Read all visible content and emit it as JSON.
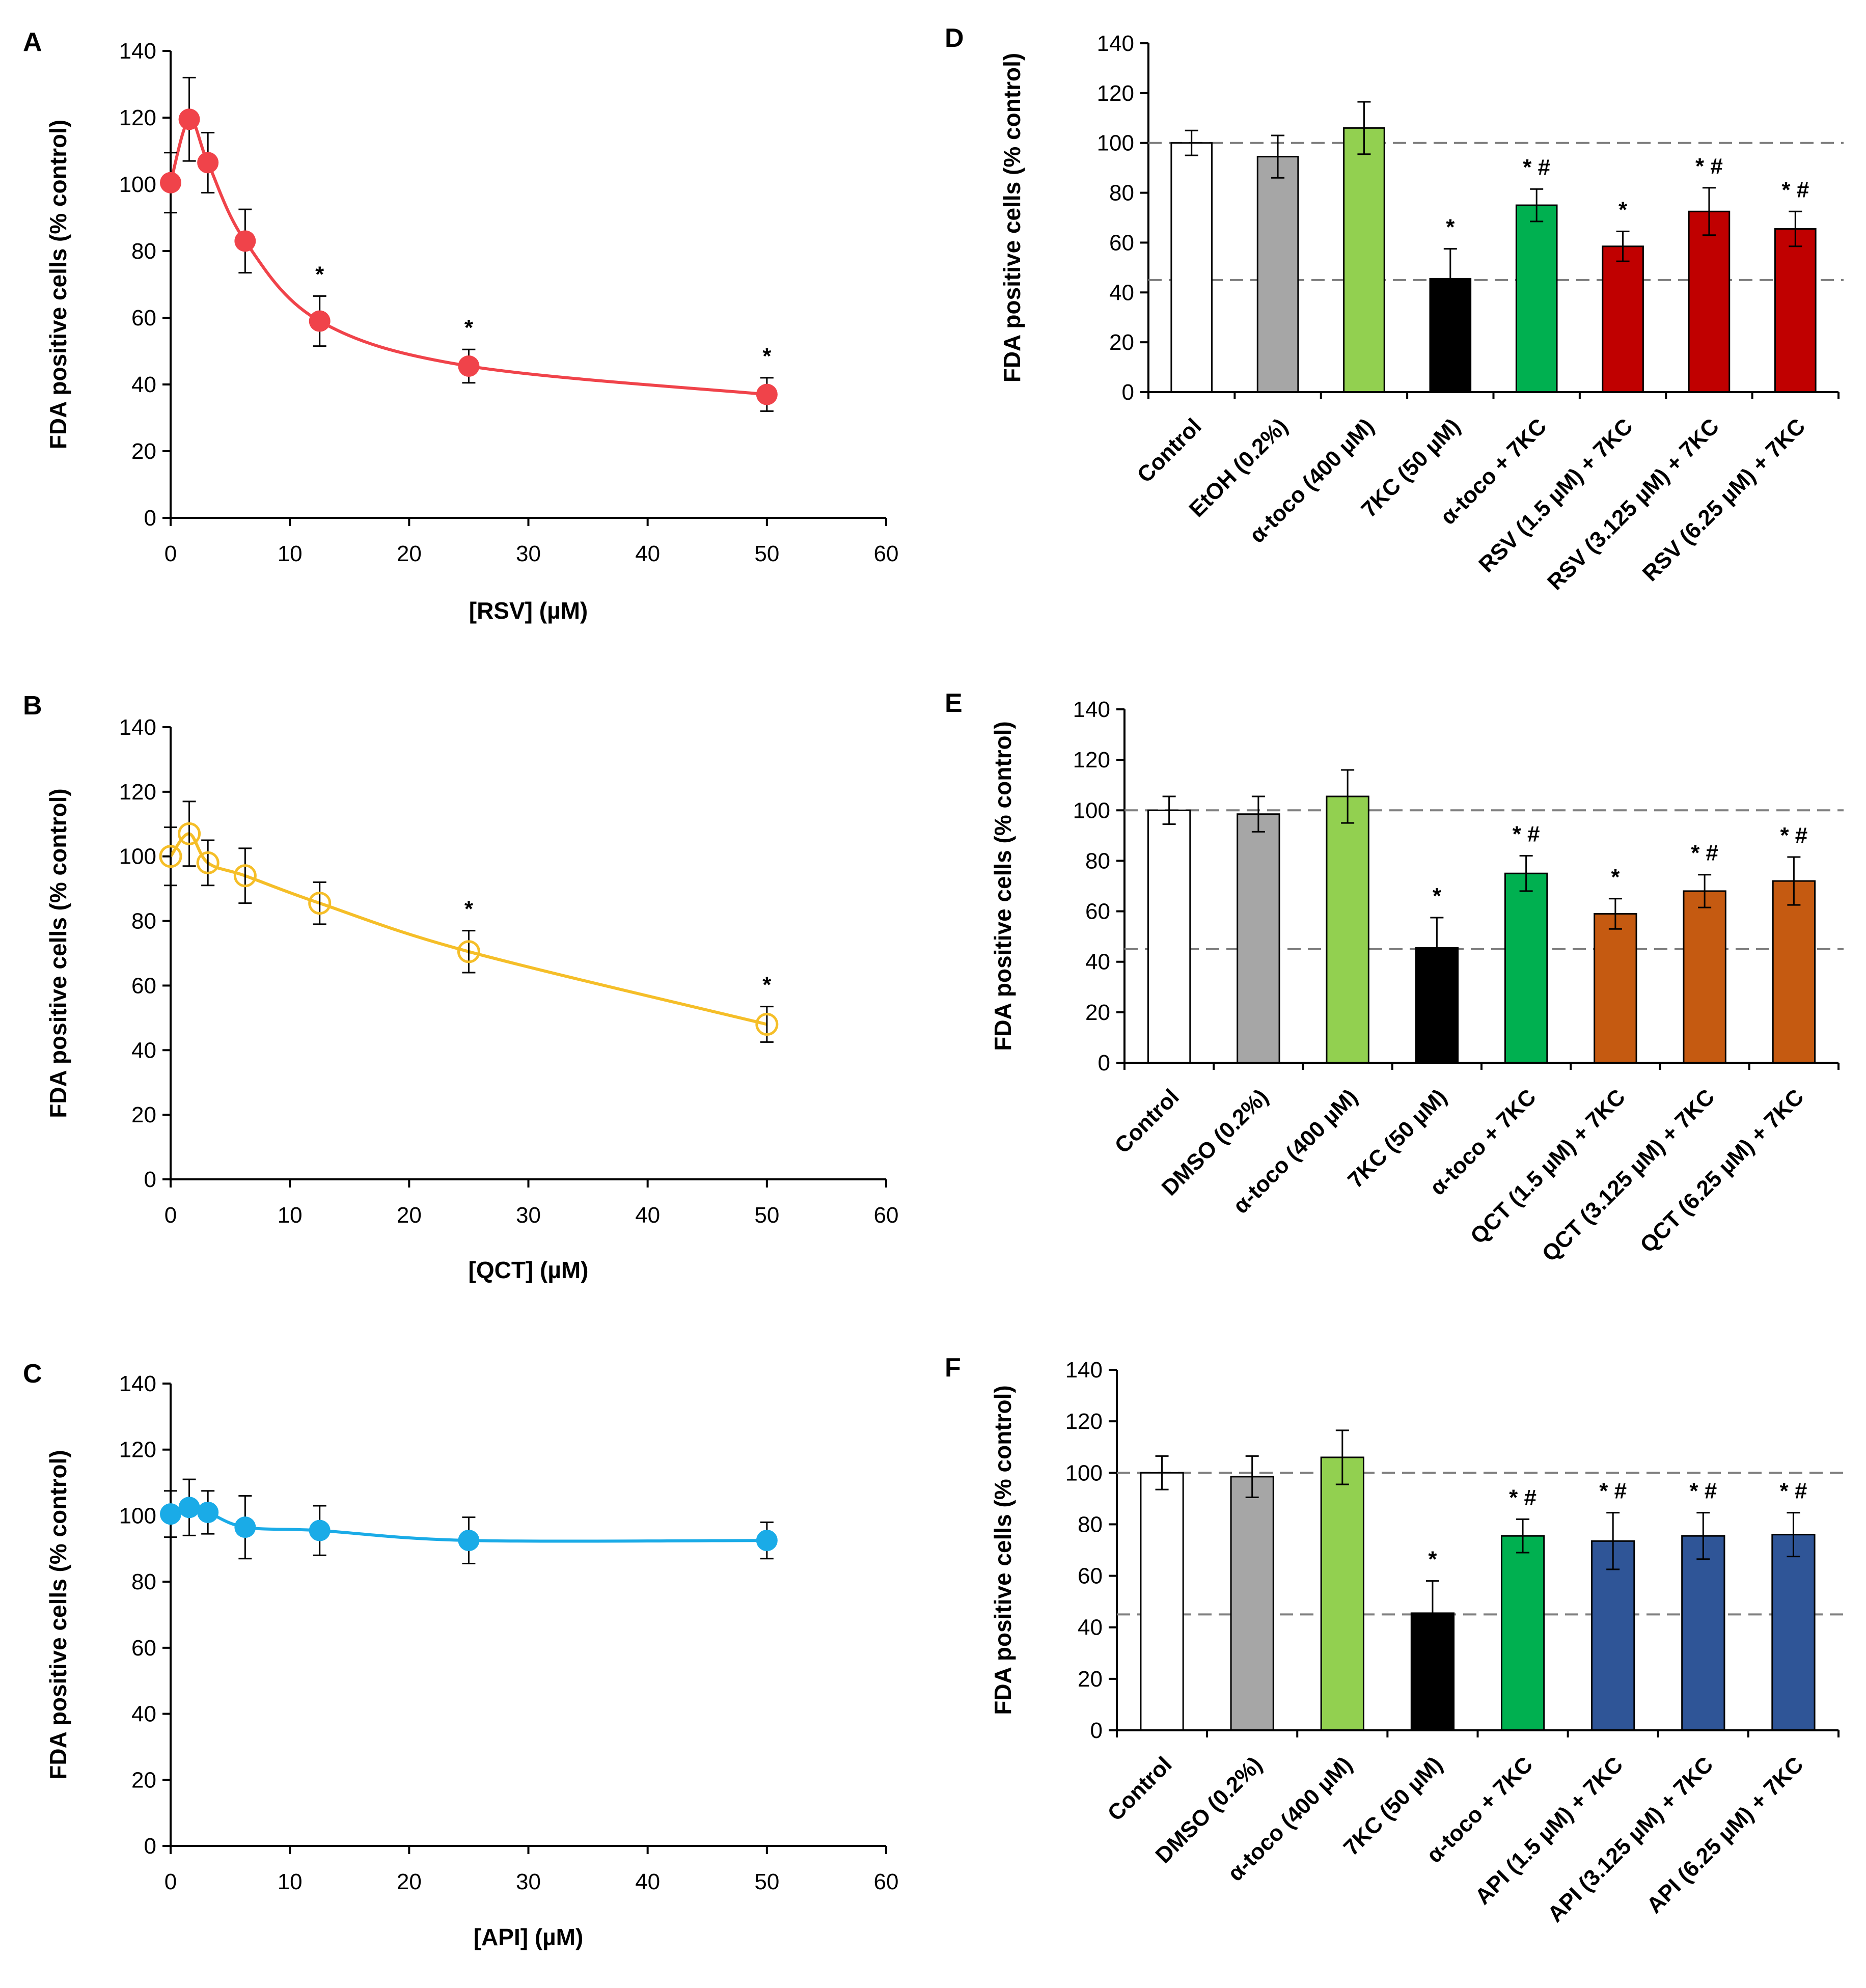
{
  "chart_data": [
    {
      "panel": "A",
      "type": "line",
      "xlabel": "[RSV] (µM)",
      "ylabel": "FDA positive  cells (% control)",
      "xlim": [
        0,
        60
      ],
      "ylim": [
        0,
        140
      ],
      "xticks": [
        0,
        10,
        20,
        30,
        40,
        50,
        60
      ],
      "yticks": [
        0,
        20,
        40,
        60,
        80,
        100,
        120,
        140
      ],
      "grid": false,
      "series": [
        {
          "name": "RSV",
          "color": "#f0434a",
          "marker": "filled",
          "x": [
            0,
            1.5625,
            3.125,
            6.25,
            12.5,
            25,
            50
          ],
          "values": [
            100.5,
            119.5,
            106.5,
            83,
            59,
            45.5,
            37
          ],
          "errors": [
            9,
            12.5,
            9,
            9.5,
            7.5,
            5,
            5
          ],
          "annotations": [
            "",
            "",
            "",
            "",
            "*",
            "*",
            "*"
          ]
        }
      ]
    },
    {
      "panel": "B",
      "type": "line",
      "xlabel": "[QCT] (µM)",
      "ylabel": "FDA positive  cells (% control)",
      "xlim": [
        0,
        60
      ],
      "ylim": [
        0,
        140
      ],
      "xticks": [
        0,
        10,
        20,
        30,
        40,
        50,
        60
      ],
      "yticks": [
        0,
        20,
        40,
        60,
        80,
        100,
        120,
        140
      ],
      "grid": false,
      "series": [
        {
          "name": "QCT",
          "color": "#f5be28",
          "marker": "open",
          "x": [
            0,
            1.5625,
            3.125,
            6.25,
            12.5,
            25,
            50
          ],
          "values": [
            100,
            107,
            98,
            94,
            85.5,
            70.5,
            48
          ],
          "errors": [
            9,
            10,
            7,
            8.5,
            6.5,
            6.5,
            5.5
          ],
          "annotations": [
            "",
            "",
            "",
            "",
            "",
            "*",
            "*"
          ]
        }
      ]
    },
    {
      "panel": "C",
      "type": "line",
      "xlabel": "[API] (µM)",
      "ylabel": "FDA positive  cells (% control)",
      "xlim": [
        0,
        60
      ],
      "ylim": [
        0,
        140
      ],
      "xticks": [
        0,
        10,
        20,
        30,
        40,
        50,
        60
      ],
      "yticks": [
        0,
        20,
        40,
        60,
        80,
        100,
        120,
        140
      ],
      "grid": false,
      "series": [
        {
          "name": "API",
          "color": "#1aabe7",
          "marker": "filled",
          "x": [
            0,
            1.5625,
            3.125,
            6.25,
            12.5,
            25,
            50
          ],
          "values": [
            100.5,
            102.5,
            101,
            96.5,
            95.5,
            92.5,
            92.5
          ],
          "errors": [
            7,
            8.5,
            6.5,
            9.5,
            7.5,
            7,
            5.5
          ],
          "annotations": [
            "",
            "",
            "",
            "",
            "",
            "",
            ""
          ]
        }
      ]
    },
    {
      "panel": "D",
      "type": "bar",
      "ylabel": "FDA positive cells (% control)",
      "ylim": [
        0,
        140
      ],
      "yticks": [
        0,
        20,
        40,
        60,
        80,
        100,
        120,
        140
      ],
      "reference_lines": [
        100,
        45
      ],
      "grid": false,
      "categories": [
        "Control",
        "EtOH (0.2%)",
        "α-toco (400 µM)",
        "7KC (50 µM)",
        "α-toco + 7KC",
        "RSV (1.5 µM) + 7KC",
        "RSV (3.125 µM) + 7KC",
        "RSV (6.25 µM) + 7KC"
      ],
      "values": [
        100,
        94.5,
        106,
        45.5,
        75,
        58.5,
        72.5,
        65.5
      ],
      "errors": [
        5,
        8.5,
        10.5,
        12,
        6.5,
        6,
        9.5,
        7
      ],
      "colors": [
        "#ffffff",
        "#a6a6a6",
        "#92d050",
        "#000000",
        "#00b050",
        "#c00000",
        "#c00000",
        "#c00000"
      ],
      "annotations": [
        "",
        "",
        "",
        "*",
        "* #",
        "*",
        "* #",
        "* #"
      ]
    },
    {
      "panel": "E",
      "type": "bar",
      "ylabel": "FDA positive cells (% control)",
      "ylim": [
        0,
        140
      ],
      "yticks": [
        0,
        20,
        40,
        60,
        80,
        100,
        120,
        140
      ],
      "reference_lines": [
        100,
        45
      ],
      "grid": false,
      "categories": [
        "Control",
        "DMSO (0.2%)",
        "α-toco (400 µM)",
        "7KC (50 µM)",
        "α-toco + 7KC",
        "QCT (1.5 µM) + 7KC",
        "QCT (3.125 µM) + 7KC",
        "QCT (6.25 µM) + 7KC"
      ],
      "values": [
        100,
        98.5,
        105.5,
        45.5,
        75,
        59,
        68,
        72
      ],
      "errors": [
        5.5,
        7,
        10.5,
        12,
        7,
        6,
        6.5,
        9.5
      ],
      "colors": [
        "#ffffff",
        "#a6a6a6",
        "#92d050",
        "#000000",
        "#00b050",
        "#c55a11",
        "#c55a11",
        "#c55a11"
      ],
      "annotations": [
        "",
        "",
        "",
        "*",
        "* #",
        "*",
        "* #",
        "* #"
      ]
    },
    {
      "panel": "F",
      "type": "bar",
      "ylabel": "FDA positive cells (% control)",
      "ylim": [
        0,
        140
      ],
      "yticks": [
        0,
        20,
        40,
        60,
        80,
        100,
        120,
        140
      ],
      "reference_lines": [
        100,
        45
      ],
      "grid": false,
      "categories": [
        "Control",
        "DMSO (0.2%)",
        "α-toco (400 µM)",
        "7KC (50 µM)",
        "α-toco + 7KC",
        "API (1.5 µM) + 7KC",
        "API (3.125 µM) + 7KC",
        "API (6.25 µM) + 7KC"
      ],
      "values": [
        100,
        98.5,
        106,
        45.5,
        75.5,
        73.5,
        75.5,
        76
      ],
      "errors": [
        6.5,
        8,
        10.5,
        12.5,
        6.5,
        11,
        9,
        8.5
      ],
      "colors": [
        "#ffffff",
        "#a6a6a6",
        "#92d050",
        "#000000",
        "#00b050",
        "#2f5597",
        "#2f5597",
        "#2f5597"
      ],
      "annotations": [
        "",
        "",
        "",
        "*",
        "* #",
        "* #",
        "* #",
        "* #"
      ]
    }
  ]
}
